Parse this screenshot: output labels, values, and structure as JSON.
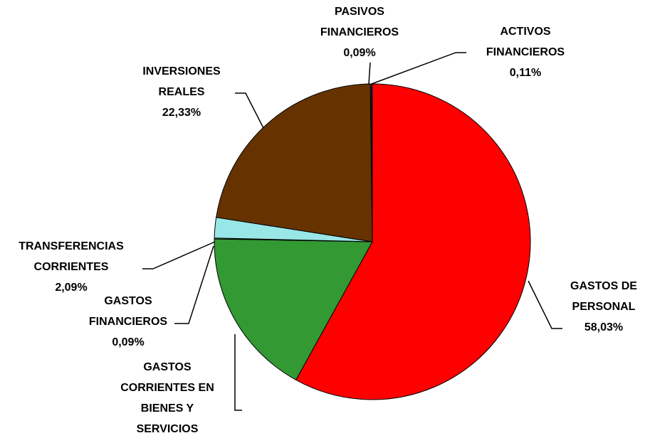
{
  "chart_data": {
    "type": "pie",
    "categories": [
      [
        "GASTOS DE",
        "PERSONAL"
      ],
      [
        "GASTOS",
        "CORRIENTES EN",
        "BIENES Y",
        "SERVICIOS"
      ],
      [
        "GASTOS",
        "FINANCIEROS"
      ],
      [
        "TRANSFERENCIAS",
        "CORRIENTES"
      ],
      [
        "INVERSIONES",
        "REALES"
      ],
      [
        "PASIVOS",
        "FINANCIEROS"
      ],
      [
        "ACTIVOS",
        "FINANCIEROS"
      ]
    ],
    "values": [
      58.03,
      17.26,
      0.09,
      2.09,
      22.33,
      0.09,
      0.11
    ],
    "value_labels": [
      "58,03%",
      null,
      "0,09%",
      "2,09%",
      "22,33%",
      "0,09%",
      "0,11%"
    ],
    "colors": [
      "#ff0000",
      "#339933",
      "#ccffff",
      "#99e6e6",
      "#663300",
      "#ff8080",
      "#0066cc"
    ]
  }
}
